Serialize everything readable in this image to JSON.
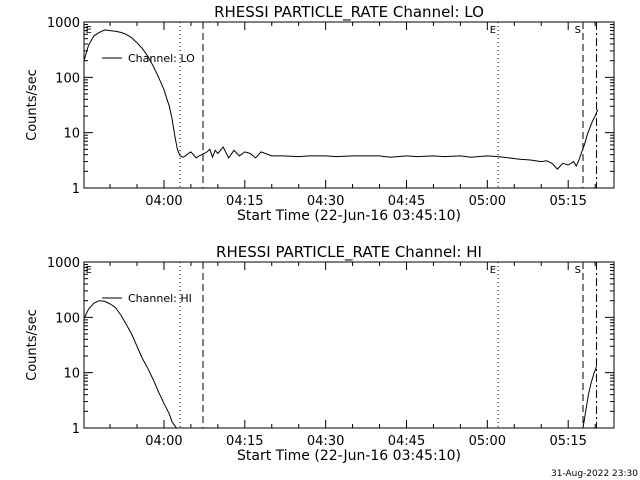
{
  "footer_timestamp": "31-Aug-2022 23:30",
  "chart_data": [
    {
      "type": "line",
      "title": "RHESSI PARTICLE_RATE Channel: LO",
      "xlabel": "Start Time (22-Jun-16 03:45:10)",
      "ylabel": "Counts/sec",
      "y_scale": "log",
      "ylim": [
        1,
        1000
      ],
      "xlim": [
        "03:45:10",
        "05:23:30"
      ],
      "x_ticks": [
        "04:00",
        "04:15",
        "04:30",
        "04:45",
        "05:00",
        "05:15"
      ],
      "y_ticks": [
        "1",
        "10",
        "100",
        "1000"
      ],
      "legend": {
        "position": "upper-left",
        "entries": [
          "Channel: LO"
        ]
      },
      "markers": [
        {
          "label": "E",
          "time": "03:45:15",
          "style": "none"
        },
        {
          "label": "",
          "time": "04:03:00",
          "style": "dotted"
        },
        {
          "label": "",
          "time": "04:07:15",
          "style": "dashed"
        },
        {
          "label": "E",
          "time": "05:02:00",
          "style": "dotted"
        },
        {
          "label": "S",
          "time": "05:17:45",
          "style": "dashed"
        },
        {
          "label": "",
          "time": "05:20:15",
          "style": "dashdot"
        }
      ],
      "series": [
        {
          "name": "Channel: LO",
          "x": [
            "03:45:10",
            "03:46:00",
            "03:47:00",
            "03:48:00",
            "03:49:00",
            "03:50:00",
            "03:51:00",
            "03:52:00",
            "03:53:00",
            "03:54:00",
            "03:55:00",
            "03:56:00",
            "03:57:00",
            "03:58:00",
            "03:59:00",
            "04:00:00",
            "04:01:00",
            "04:01:30",
            "04:02:00",
            "04:02:30",
            "04:03:00",
            "04:03:30",
            "04:04:00",
            "04:04:30",
            "04:05:00",
            "04:06:00",
            "04:06:30",
            "04:07:00",
            "04:08:00",
            "04:08:30",
            "04:09:00",
            "04:09:30",
            "04:10:00",
            "04:11:00",
            "04:12:00",
            "04:13:00",
            "04:14:00",
            "04:15:00",
            "04:16:00",
            "04:17:00",
            "04:18:00",
            "04:20:00",
            "04:22:00",
            "04:25:00",
            "04:27:00",
            "04:30:00",
            "04:32:00",
            "04:35:00",
            "04:37:00",
            "04:40:00",
            "04:42:00",
            "04:45:00",
            "04:47:00",
            "04:50:00",
            "04:52:00",
            "04:55:00",
            "04:57:00",
            "05:00:00",
            "05:02:00",
            "05:04:00",
            "05:06:00",
            "05:08:00",
            "05:10:00",
            "05:11:00",
            "05:12:00",
            "05:13:00",
            "05:14:00",
            "05:15:00",
            "05:16:00",
            "05:16:30",
            "05:17:00",
            "05:17:30",
            "05:18:00",
            "05:18:30",
            "05:19:00",
            "05:19:30",
            "05:20:00",
            "05:20:30"
          ],
          "values": [
            200,
            380,
            560,
            650,
            720,
            700,
            680,
            650,
            600,
            520,
            420,
            330,
            240,
            160,
            100,
            60,
            30,
            18,
            9,
            5,
            3.8,
            3.6,
            3.8,
            4.2,
            4.5,
            3.5,
            3.8,
            4.0,
            4.5,
            5,
            3.6,
            4.8,
            4.2,
            5.5,
            3.5,
            4.8,
            3.8,
            4.5,
            4.2,
            3.5,
            4.5,
            3.8,
            3.8,
            3.7,
            3.8,
            3.8,
            3.7,
            3.8,
            3.8,
            3.8,
            3.6,
            3.8,
            3.7,
            3.8,
            3.7,
            3.8,
            3.6,
            3.8,
            3.7,
            3.5,
            3.3,
            3.2,
            3.0,
            3.1,
            2.8,
            2.2,
            2.8,
            2.6,
            3.0,
            2.5,
            3.2,
            4.5,
            6,
            9,
            12,
            16,
            20,
            26
          ]
        }
      ]
    },
    {
      "type": "line",
      "title": "RHESSI PARTICLE_RATE Channel: HI",
      "xlabel": "Start Time (22-Jun-16 03:45:10)",
      "ylabel": "Counts/sec",
      "y_scale": "log",
      "ylim": [
        1,
        1000
      ],
      "xlim": [
        "03:45:10",
        "05:23:30"
      ],
      "x_ticks": [
        "04:00",
        "04:15",
        "04:30",
        "04:45",
        "05:00",
        "05:15"
      ],
      "y_ticks": [
        "1",
        "10",
        "100",
        "1000"
      ],
      "legend": {
        "position": "upper-left",
        "entries": [
          "Channel: HI"
        ]
      },
      "markers": [
        {
          "label": "E",
          "time": "03:45:15",
          "style": "none"
        },
        {
          "label": "",
          "time": "04:03:00",
          "style": "dotted"
        },
        {
          "label": "",
          "time": "04:07:15",
          "style": "dashed"
        },
        {
          "label": "E",
          "time": "05:02:00",
          "style": "dotted"
        },
        {
          "label": "S",
          "time": "05:17:45",
          "style": "dashed"
        },
        {
          "label": "",
          "time": "05:20:15",
          "style": "dashdot"
        }
      ],
      "series": [
        {
          "name": "Channel: HI",
          "x": [
            "03:45:10",
            "03:46:00",
            "03:47:00",
            "03:48:00",
            "03:49:00",
            "03:50:00",
            "03:51:00",
            "03:52:00",
            "03:53:00",
            "03:54:00",
            "03:55:00",
            "03:56:00",
            "03:57:00",
            "03:58:00",
            "03:59:00",
            "04:00:00",
            "04:01:00",
            "04:01:30",
            "04:02:00",
            "04:02:20"
          ],
          "values": [
            95,
            140,
            180,
            200,
            195,
            175,
            150,
            110,
            75,
            50,
            30,
            18,
            12,
            7.5,
            4.5,
            2.8,
            1.8,
            1.3,
            1.1,
            1.0
          ],
          "x2": [
            "05:17:45",
            "05:18:15",
            "05:18:45",
            "05:19:15",
            "05:19:45",
            "05:20:15"
          ],
          "values2": [
            1.0,
            2.0,
            4.0,
            6.5,
            9.5,
            13
          ]
        }
      ]
    }
  ]
}
